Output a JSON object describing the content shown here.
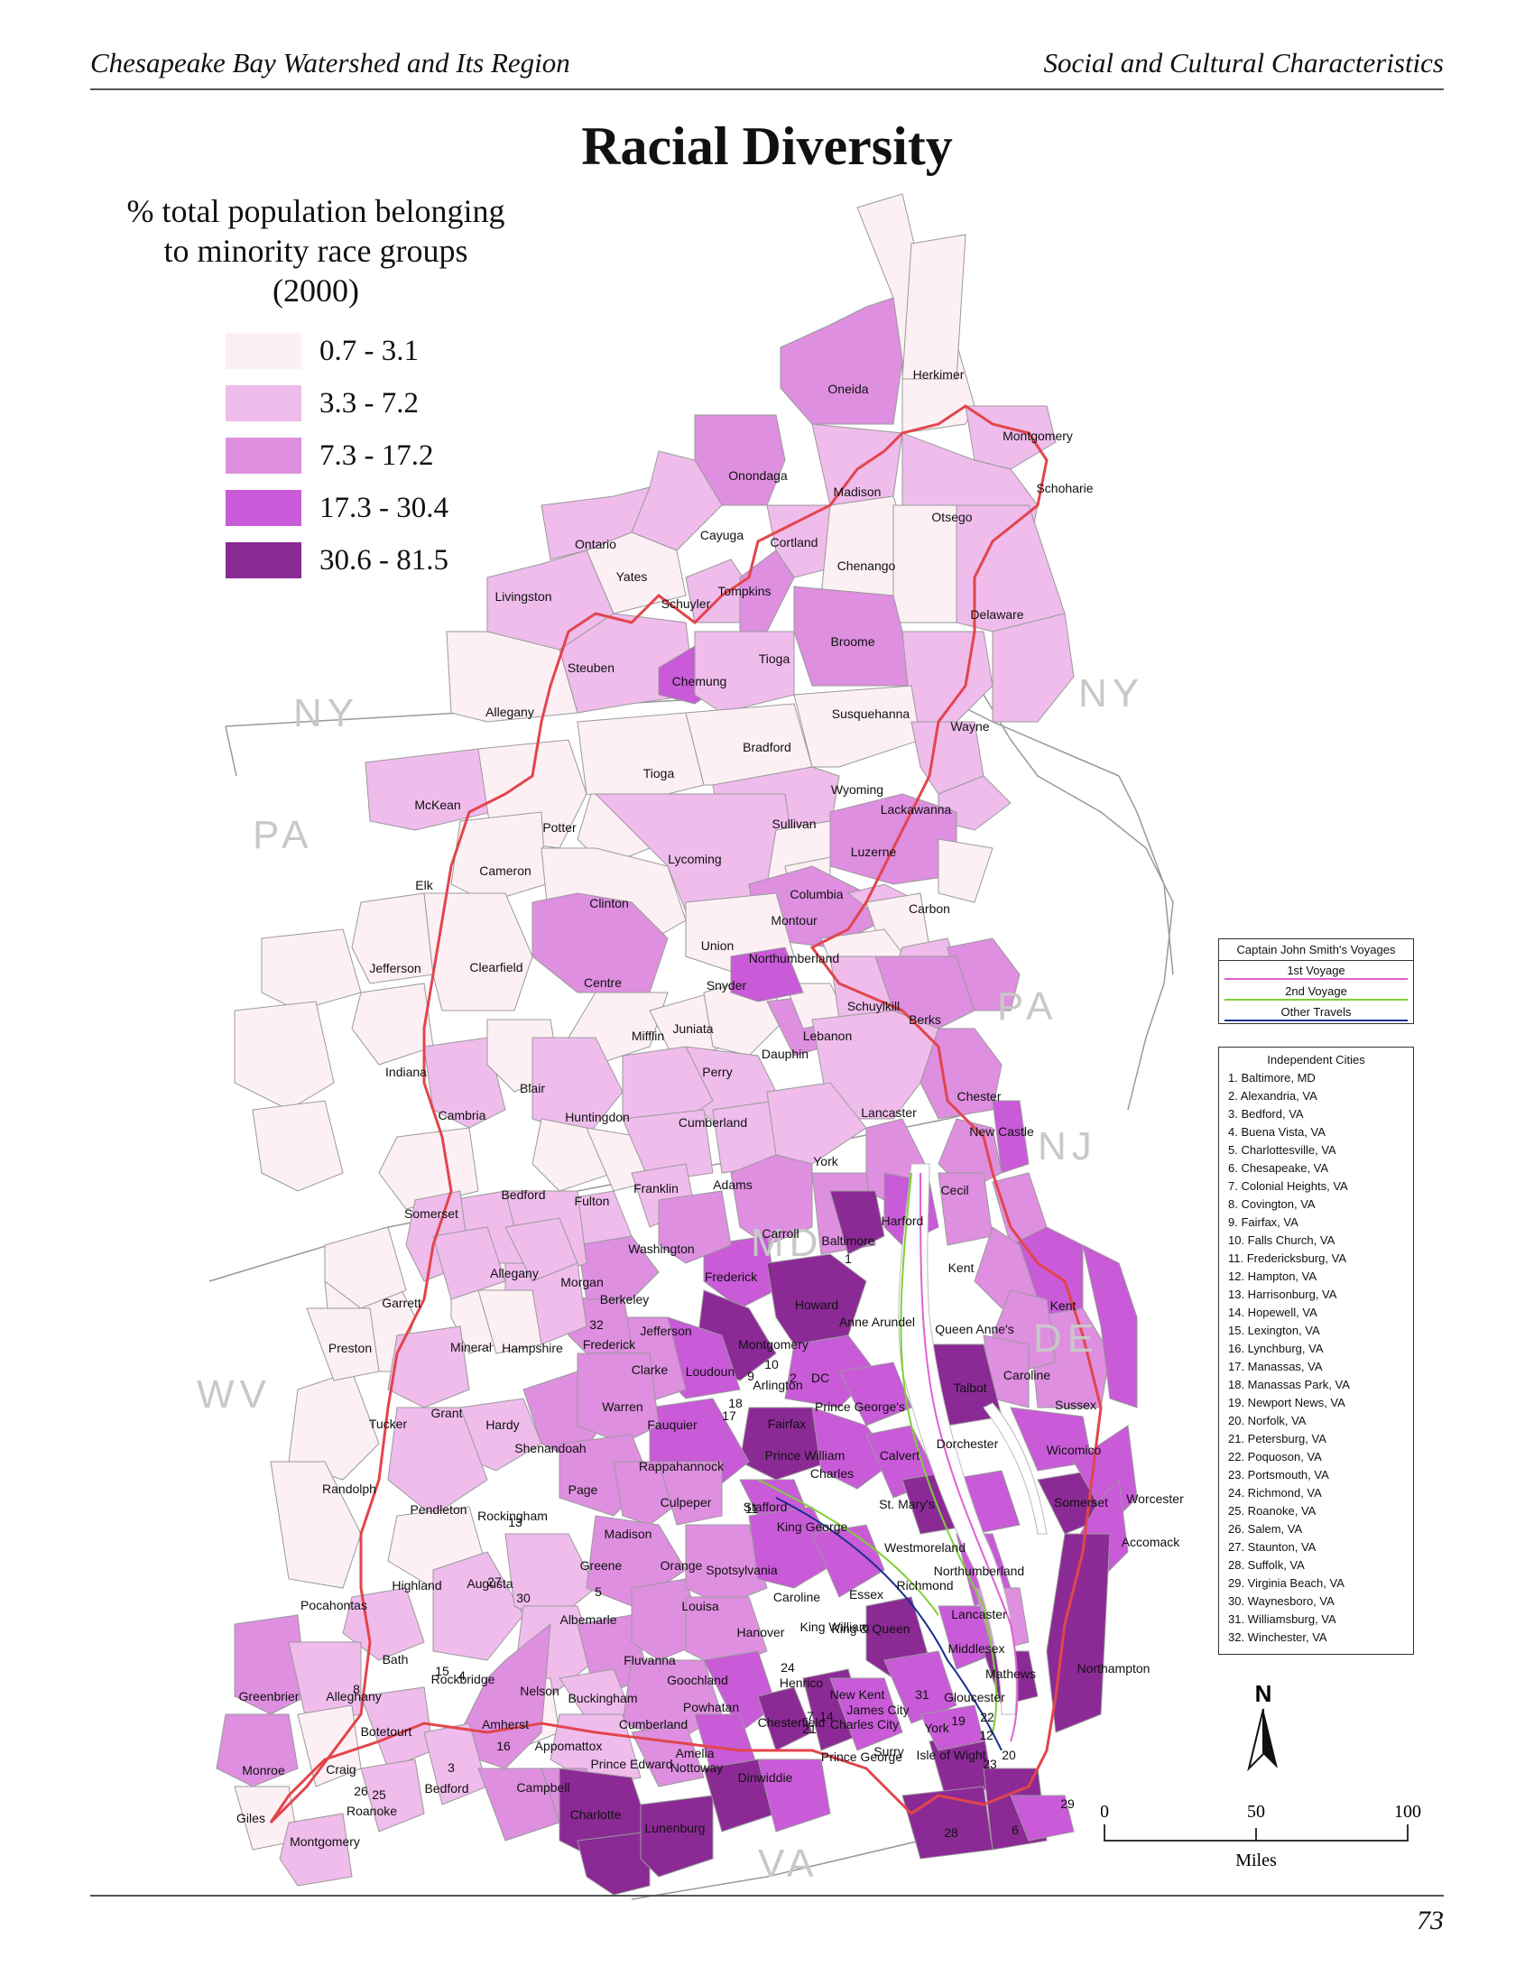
{
  "header": {
    "left": "Chesapeake Bay Watershed and Its Region",
    "right": "Social and Cultural Characteristics"
  },
  "title": "Racial Diversity",
  "legend": {
    "title_lines": [
      "% total population belonging",
      "to minority race groups",
      "(2000)"
    ],
    "classes": [
      {
        "label": "0.7 - 3.1",
        "color": "#fdf0f5"
      },
      {
        "label": "3.3 - 7.2",
        "color": "#efbcec"
      },
      {
        "label": "7.3 - 17.2",
        "color": "#de8fe0"
      },
      {
        "label": "17.3 - 30.4",
        "color": "#c95ad8"
      },
      {
        "label": "30.6 - 81.5",
        "color": "#8b2a95"
      }
    ]
  },
  "state_labels": [
    "NY",
    "NY",
    "PA",
    "PA",
    "NJ",
    "DE",
    "MD",
    "WV",
    "VA"
  ],
  "counties": [
    "Herkimer",
    "Oneida",
    "Montgomery",
    "Onondaga",
    "Schoharie",
    "Madison",
    "Otsego",
    "Cayuga",
    "Cortland",
    "Ontario",
    "Chenango",
    "Yates",
    "Tompkins",
    "Livingston",
    "Schuyler",
    "Delaware",
    "Broome",
    "Steuben",
    "Chemung",
    "Tioga",
    "Allegany",
    "Susquehanna",
    "Wayne",
    "Bradford",
    "Tioga",
    "Wyoming",
    "McKean",
    "Lackawanna",
    "Potter",
    "Sullivan",
    "Cameron",
    "Lycoming",
    "Luzerne",
    "Elk",
    "Clinton",
    "Columbia",
    "Carbon",
    "Montour",
    "Union",
    "Northumberland",
    "Jefferson",
    "Clearfield",
    "Schuylkill",
    "Centre",
    "Snyder",
    "Berks",
    "Juniata",
    "Mifflin",
    "Lebanon",
    "Dauphin",
    "Indiana",
    "Perry",
    "Blair",
    "Chester",
    "Lancaster",
    "Cambria",
    "Huntingdon",
    "Cumberland",
    "York",
    "New Castle",
    "Adams",
    "Bedford",
    "Franklin",
    "Cecil",
    "Fulton",
    "Somerset",
    "Harford",
    "Carroll",
    "Baltimore",
    "Washington",
    "Allegany",
    "Kent",
    "Frederick",
    "Garrett",
    "Morgan",
    "Berkeley",
    "Howard",
    "Kent",
    "Anne Arundel",
    "Jefferson",
    "Queen Anne's",
    "Frederick",
    "Preston",
    "Mineral",
    "Hampshire",
    "Montgomery",
    "Clarke",
    "Loudoun",
    "Caroline",
    "Arlington",
    "DC",
    "Talbot",
    "Sussex",
    "Prince George's",
    "Warren",
    "Fairfax",
    "Tucker",
    "Grant",
    "Hardy",
    "Fauquier",
    "Dorchester",
    "Prince William",
    "Shenandoah",
    "Calvert",
    "Wicomico",
    "Rappahannock",
    "Charles",
    "Randolph",
    "Page",
    "Culpeper",
    "Stafford",
    "St. Mary's",
    "Somerset",
    "Worcester",
    "Pendleton",
    "Rockingham",
    "King George",
    "Madison",
    "Accomack",
    "Westmoreland",
    "Greene",
    "Orange",
    "Spotsylvania",
    "Northumberland",
    "Richmond",
    "Highland",
    "Augusta",
    "Caroline",
    "Essex",
    "Pocahontas",
    "Louisa",
    "Lancaster",
    "Albemarle",
    "King William",
    "King & Queen",
    "Hanover",
    "Middlesex",
    "Bath",
    "Fluvanna",
    "Rockbridge",
    "Goochland",
    "Mathews",
    "Northampton",
    "Greenbrier",
    "Alleghany",
    "Nelson",
    "Buckingham",
    "Powhatan",
    "Henrico",
    "New Kent",
    "Gloucester",
    "James City",
    "Charles City",
    "York",
    "Cumberland",
    "Chesterfield",
    "Amherst",
    "Botetourt",
    "Appomattox",
    "Amelia",
    "Monroe",
    "Craig",
    "Prince George",
    "Surry",
    "Isle of Wight",
    "Nottoway",
    "Prince Edward",
    "Dinwiddie",
    "Bedford",
    "Campbell",
    "Roanoke",
    "Giles",
    "Charlotte",
    "Lunenburg",
    "Montgomery"
  ],
  "city_markers": [
    "1",
    "9",
    "10",
    "2",
    "18",
    "17",
    "32",
    "13",
    "27",
    "30",
    "5",
    "11",
    "24",
    "31",
    "7",
    "14",
    "21",
    "19",
    "22",
    "12",
    "20",
    "23",
    "29",
    "28",
    "6",
    "8",
    "15",
    "4",
    "16",
    "26",
    "25",
    "3"
  ],
  "voyages": {
    "title": "Captain John Smith's Voyages",
    "items": [
      {
        "label": "1st Voyage",
        "color": "#e060d0"
      },
      {
        "label": "2nd Voyage",
        "color": "#7fcf3a"
      },
      {
        "label": "Other Travels",
        "color": "#1a2f8c"
      }
    ]
  },
  "independent_cities": {
    "title": "Independent Cities",
    "items": [
      "1.  Baltimore, MD",
      "2.  Alexandria, VA",
      "3.  Bedford, VA",
      "4.  Buena Vista, VA",
      "5.  Charlottesville, VA",
      "6.  Chesapeake, VA",
      "7.  Colonial Heights, VA",
      "8.  Covington, VA",
      "9.  Fairfax, VA",
      "10. Falls Church, VA",
      "11. Fredericksburg, VA",
      "12. Hampton, VA",
      "13. Harrisonburg, VA",
      "14. Hopewell, VA",
      "15. Lexington, VA",
      "16. Lynchburg, VA",
      "17. Manassas, VA",
      "18. Manassas Park, VA",
      "19. Newport News, VA",
      "20. Norfolk, VA",
      "21. Petersburg, VA",
      "22. Poquoson, VA",
      "23. Portsmouth, VA",
      "24. Richmond, VA",
      "25. Roanoke, VA",
      "26. Salem, VA",
      "27. Staunton, VA",
      "28. Suffolk, VA",
      "29. Virginia Beach, VA",
      "30. Waynesboro, VA",
      "31. Williamsburg, VA",
      "32. Winchester, VA"
    ]
  },
  "scale": {
    "ticks": [
      "0",
      "50",
      "100"
    ],
    "unit": "Miles"
  },
  "north_label": "N",
  "page_number": "73"
}
